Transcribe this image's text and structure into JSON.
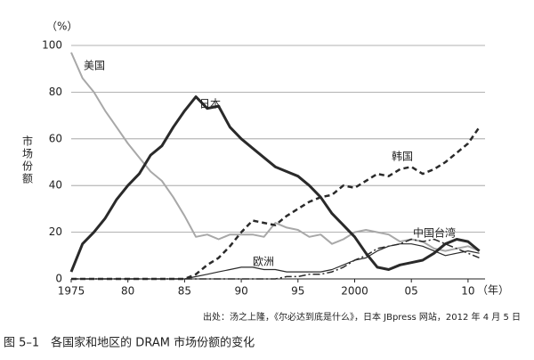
{
  "chart_data": {
    "type": "line",
    "title": "图 5–1　各国家和地区的 DRAM 市场份额的变化",
    "source": "出处：汤之上隆，《尔必达到底是什么》，日本 JBpress 网站，2012 年 4 月 5 日",
    "y_label": "市场份额",
    "y_unit": "（%）",
    "x_unit": "（年）",
    "x": [
      1975,
      1976,
      1977,
      1978,
      1979,
      1980,
      1981,
      1982,
      1983,
      1984,
      1985,
      1986,
      1987,
      1988,
      1989,
      1990,
      1991,
      1992,
      1993,
      1994,
      1995,
      1996,
      1997,
      1998,
      1999,
      2000,
      2001,
      2002,
      2003,
      2004,
      2005,
      2006,
      2007,
      2008,
      2009,
      2010,
      2011
    ],
    "xlim": [
      1975,
      2011.5
    ],
    "xticks": [
      1975,
      {
        "value": 1980,
        "label": "80"
      },
      {
        "value": 1985,
        "label": "85"
      },
      {
        "value": 1990,
        "label": "90"
      },
      {
        "value": 1995,
        "label": "95"
      },
      2000,
      {
        "value": 2005,
        "label": "05"
      },
      {
        "value": 2010,
        "label": "10"
      }
    ],
    "ylim": [
      0,
      100
    ],
    "yticks": [
      0,
      20,
      40,
      60,
      80,
      100
    ],
    "grid": true,
    "series": [
      {
        "name": "美国",
        "color": "#a8a8a8",
        "dash": "solid",
        "values": [
          97,
          86,
          80,
          72,
          65,
          58,
          52,
          46,
          42,
          35,
          27,
          18,
          19,
          17,
          19,
          19,
          19,
          18,
          24,
          22,
          21,
          18,
          19,
          15,
          17,
          20,
          21,
          20,
          19,
          16,
          17,
          16,
          13,
          12,
          13,
          14,
          12
        ]
      },
      {
        "name": "日本",
        "color": "#2a2a2a",
        "dash": "solid",
        "values": [
          3,
          15,
          20,
          26,
          34,
          40,
          45,
          53,
          57,
          65,
          72,
          78,
          73,
          74,
          65,
          60,
          56,
          52,
          48,
          46,
          44,
          40,
          35,
          28,
          23,
          18,
          11,
          5,
          4,
          6,
          7,
          8,
          11,
          15,
          17,
          16,
          12
        ]
      },
      {
        "name": "韩国",
        "color": "#2a2a2a",
        "dash": "dashed",
        "values": [
          0,
          0,
          0,
          0,
          0,
          0,
          0,
          0,
          0,
          0,
          0,
          2,
          6,
          9,
          14,
          20,
          25,
          24,
          23,
          27,
          30,
          33,
          35,
          36,
          40,
          39,
          42,
          45,
          44,
          47,
          48,
          45,
          47,
          50,
          54,
          58,
          65
        ]
      },
      {
        "name": "欧洲",
        "color": "#2a2a2a",
        "dash": "solid",
        "values": [
          0,
          0,
          0,
          0,
          0,
          0,
          0,
          0,
          0,
          0,
          0,
          1,
          2,
          3,
          4,
          5,
          5,
          4,
          4,
          3,
          3,
          3,
          3,
          4,
          6,
          8,
          9,
          12,
          14,
          15,
          15,
          14,
          12,
          10,
          11,
          12,
          11
        ]
      },
      {
        "name": "中国台湾",
        "color": "#2a2a2a",
        "dash": "dashdot",
        "values": [
          0,
          0,
          0,
          0,
          0,
          0,
          0,
          0,
          0,
          0,
          0,
          0,
          0,
          0,
          0,
          0,
          0,
          0,
          0,
          1,
          1,
          2,
          2,
          3,
          5,
          8,
          10,
          13,
          14,
          15,
          17,
          16,
          17,
          15,
          13,
          11,
          9
        ]
      }
    ]
  }
}
